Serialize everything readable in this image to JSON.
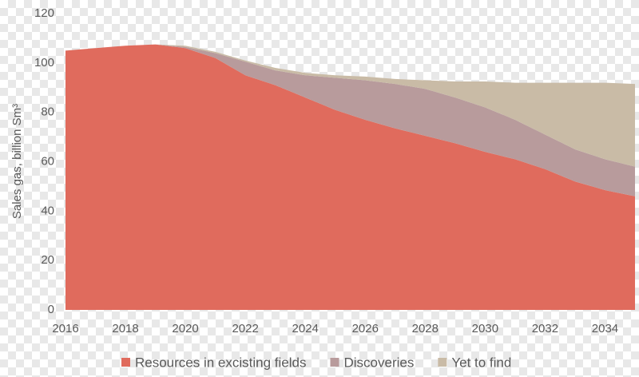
{
  "chart_data": {
    "type": "stacked_area",
    "y_label": "Sales gas, billion Sm³",
    "x": [
      2016,
      2017,
      2018,
      2019,
      2020,
      2021,
      2022,
      2023,
      2024,
      2025,
      2026,
      2027,
      2028,
      2029,
      2030,
      2031,
      2032,
      2033,
      2034,
      2035
    ],
    "series": [
      {
        "name": "Resources in excisting fields",
        "color": "#e06b5d",
        "values": [
          105,
          106,
          107,
          107.5,
          106,
          102,
          95,
          91,
          86,
          81,
          77,
          73.5,
          70.5,
          67.5,
          64,
          61,
          57,
          52,
          48.5,
          46
        ]
      },
      {
        "name": "Discoveries",
        "color": "#b89b9c",
        "values": [
          0,
          0,
          0,
          0,
          0.5,
          2,
          5.5,
          6,
          9,
          13,
          16,
          18,
          19,
          18.5,
          18,
          16,
          14,
          13,
          12.5,
          12
        ]
      },
      {
        "name": "Yet to find",
        "color": "#c9bba6",
        "values": [
          0,
          0,
          0,
          0,
          0.5,
          0.5,
          0.5,
          1,
          1,
          1,
          1.5,
          2,
          3.5,
          6.5,
          10.5,
          15,
          21,
          27,
          31,
          33.5
        ]
      }
    ],
    "xlim": [
      2016,
      2035
    ],
    "xticks": [
      2016,
      2018,
      2020,
      2022,
      2024,
      2026,
      2028,
      2030,
      2032,
      2034
    ],
    "ylim": [
      0,
      120
    ],
    "yticks": [
      0,
      20,
      40,
      60,
      80,
      100,
      120
    ],
    "legend": "bottom"
  }
}
